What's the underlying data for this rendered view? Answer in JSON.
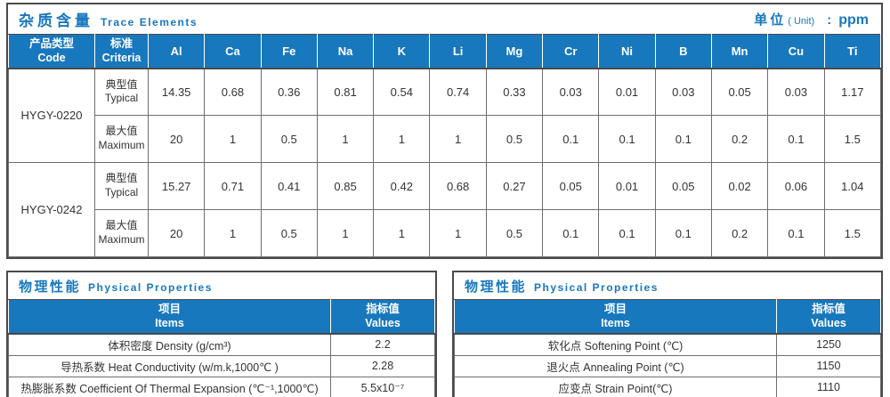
{
  "colors": {
    "accent_blue": "#1878BE",
    "header_bg": "#1878BE",
    "header_text": "#FFFFFF",
    "border_dark": "#4A4A4A",
    "grid_line": "#6E6E6E",
    "body_text": "#333333"
  },
  "trace": {
    "title_cn": "杂质含量",
    "title_en": "Trace Elements",
    "unit_cn": "单位",
    "unit_en": "( Unit)",
    "unit_colon": ":",
    "unit_value": "ppm",
    "code_header_cn": "产品类型",
    "code_header_en": "Code",
    "criteria_header_cn": "标准",
    "criteria_header_en": "Criteria",
    "elements": [
      "Al",
      "Ca",
      "Fe",
      "Na",
      "K",
      "Li",
      "Mg",
      "Cr",
      "Ni",
      "B",
      "Mn",
      "Cu",
      "Ti"
    ],
    "products": [
      {
        "code": "HYGY-0220",
        "rows": [
          {
            "label_cn": "典型值",
            "label_en": "Typical",
            "values": [
              "14.35",
              "0.68",
              "0.36",
              "0.81",
              "0.54",
              "0.74",
              "0.33",
              "0.03",
              "0.01",
              "0.03",
              "0.05",
              "0.03",
              "1.17"
            ]
          },
          {
            "label_cn": "最大值",
            "label_en": "Maximum",
            "values": [
              "20",
              "1",
              "0.5",
              "1",
              "1",
              "1",
              "0.5",
              "0.1",
              "0.1",
              "0.1",
              "0.2",
              "0.1",
              "1.5"
            ]
          }
        ]
      },
      {
        "code": "HYGY-0242",
        "rows": [
          {
            "label_cn": "典型值",
            "label_en": "Typical",
            "values": [
              "15.27",
              "0.71",
              "0.41",
              "0.85",
              "0.42",
              "0.68",
              "0.27",
              "0.05",
              "0.01",
              "0.05",
              "0.02",
              "0.06",
              "1.04"
            ]
          },
          {
            "label_cn": "最大值",
            "label_en": "Maximum",
            "values": [
              "20",
              "1",
              "0.5",
              "1",
              "1",
              "1",
              "0.5",
              "0.1",
              "0.1",
              "0.1",
              "0.2",
              "0.1",
              "1.5"
            ]
          }
        ]
      }
    ]
  },
  "physical_left": {
    "title_cn": "物理性能",
    "title_en": "Physical Properties",
    "items_header_cn": "项目",
    "items_header_en": "Items",
    "values_header_cn": "指标值",
    "values_header_en": "Values",
    "rows": [
      {
        "item": "体积密度 Density (g/cm³)",
        "value": "2.2"
      },
      {
        "item": "导热系数 Heat Conductivity (w/m.k,1000℃ )",
        "value": "2.28"
      },
      {
        "item": "热膨胀系数 Coefficient Of Thermal Expansion (℃⁻¹,1000℃)",
        "value": "5.5x10⁻⁷"
      }
    ]
  },
  "physical_right": {
    "title_cn": "物理性能",
    "title_en": "Physical Properties",
    "items_header_cn": "项目",
    "items_header_en": "Items",
    "values_header_cn": "指标值",
    "values_header_en": "Values",
    "rows": [
      {
        "item": "软化点 Softening Point (℃)",
        "value": "1250"
      },
      {
        "item": "退火点 Annealing Point (℃)",
        "value": "1150"
      },
      {
        "item": "应变点 Strain Point(℃)",
        "value": "1110"
      }
    ]
  }
}
